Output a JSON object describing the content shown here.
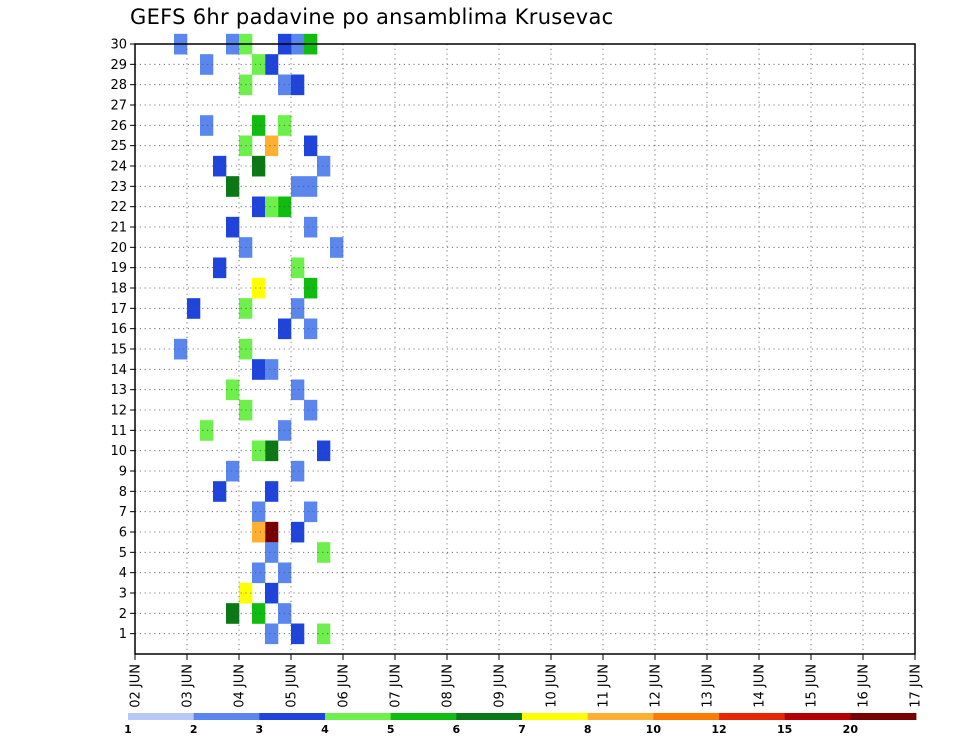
{
  "chart_data": {
    "type": "heatmap",
    "title": "GEFS 6hr padavine po ansamblima Krusevac",
    "xlabel": "",
    "ylabel": "",
    "x_tick_labels": [
      "02 JUN",
      "03 JUN",
      "04 JUN",
      "05 JUN",
      "06 JUN",
      "07 JUN",
      "08 JUN",
      "09 JUN",
      "10 JUN",
      "11 JUN",
      "12 JUN",
      "13 JUN",
      "14 JUN",
      "15 JUN",
      "16 JUN",
      "17 JUN"
    ],
    "y_tick_labels": [
      "1",
      "2",
      "3",
      "4",
      "5",
      "6",
      "7",
      "8",
      "9",
      "10",
      "11",
      "12",
      "13",
      "14",
      "15",
      "16",
      "17",
      "18",
      "19",
      "20",
      "21",
      "22",
      "23",
      "24",
      "25",
      "26",
      "27",
      "28",
      "29",
      "30"
    ],
    "ylim": [
      0,
      30
    ],
    "grid": true,
    "colorbar": {
      "labels": [
        "1",
        "2",
        "3",
        "4",
        "5",
        "6",
        "7",
        "8",
        "10",
        "12",
        "15",
        "20"
      ],
      "colors": [
        "#b8c8f6",
        "#5a86ee",
        "#1e44dc",
        "#6ef04c",
        "#0fbc0f",
        "#0a7814",
        "#ffff00",
        "#ffb030",
        "#ff7a00",
        "#e62800",
        "#b40000",
        "#780000"
      ]
    },
    "cells": [
      {
        "t": 7,
        "m": 30,
        "c": 1
      },
      {
        "t": 12,
        "m": 30,
        "c": 1
      },
      {
        "t": 11,
        "m": 30,
        "c": 2
      },
      {
        "t": 13,
        "m": 30,
        "c": 4
      },
      {
        "t": 8,
        "m": 30,
        "c": 3
      },
      {
        "t": 3,
        "m": 30,
        "c": 1
      },
      {
        "t": 5,
        "m": 29,
        "c": 1
      },
      {
        "t": 10,
        "m": 29,
        "c": 2
      },
      {
        "t": 9,
        "m": 29,
        "c": 3
      },
      {
        "t": 11,
        "m": 28,
        "c": 1
      },
      {
        "t": 12,
        "m": 28,
        "c": 2
      },
      {
        "t": 8,
        "m": 28,
        "c": 3
      },
      {
        "t": 5,
        "m": 26,
        "c": 1
      },
      {
        "t": 9,
        "m": 26,
        "c": 4
      },
      {
        "t": 11,
        "m": 26,
        "c": 3
      },
      {
        "t": 8,
        "m": 25,
        "c": 3
      },
      {
        "t": 13,
        "m": 25,
        "c": 2
      },
      {
        "t": 10,
        "m": 25,
        "c": 7
      },
      {
        "t": 6,
        "m": 24,
        "c": 2
      },
      {
        "t": 14,
        "m": 24,
        "c": 1
      },
      {
        "t": 9,
        "m": 24,
        "c": 5
      },
      {
        "t": 7,
        "m": 23,
        "c": 5
      },
      {
        "t": 12,
        "m": 23,
        "c": 1
      },
      {
        "t": 13,
        "m": 23,
        "c": 1
      },
      {
        "t": 9,
        "m": 22,
        "c": 2
      },
      {
        "t": 11,
        "m": 22,
        "c": 4
      },
      {
        "t": 10,
        "m": 22,
        "c": 3
      },
      {
        "t": 13,
        "m": 21,
        "c": 1
      },
      {
        "t": 7,
        "m": 21,
        "c": 2
      },
      {
        "t": 8,
        "m": 20,
        "c": 1
      },
      {
        "t": 15,
        "m": 20,
        "c": 1
      },
      {
        "t": 12,
        "m": 19,
        "c": 3
      },
      {
        "t": 6,
        "m": 19,
        "c": 2
      },
      {
        "t": 9,
        "m": 18,
        "c": 6
      },
      {
        "t": 13,
        "m": 18,
        "c": 4
      },
      {
        "t": 12,
        "m": 17,
        "c": 1
      },
      {
        "t": 4,
        "m": 17,
        "c": 2
      },
      {
        "t": 8,
        "m": 17,
        "c": 3
      },
      {
        "t": 13,
        "m": 16,
        "c": 1
      },
      {
        "t": 11,
        "m": 16,
        "c": 2
      },
      {
        "t": 8,
        "m": 15,
        "c": 3
      },
      {
        "t": 3,
        "m": 15,
        "c": 1
      },
      {
        "t": 9,
        "m": 14,
        "c": 2
      },
      {
        "t": 10,
        "m": 14,
        "c": 1
      },
      {
        "t": 7,
        "m": 13,
        "c": 3
      },
      {
        "t": 12,
        "m": 13,
        "c": 1
      },
      {
        "t": 8,
        "m": 12,
        "c": 3
      },
      {
        "t": 13,
        "m": 12,
        "c": 1
      },
      {
        "t": 11,
        "m": 11,
        "c": 1
      },
      {
        "t": 5,
        "m": 11,
        "c": 3
      },
      {
        "t": 10,
        "m": 10,
        "c": 5
      },
      {
        "t": 9,
        "m": 10,
        "c": 3
      },
      {
        "t": 14,
        "m": 10,
        "c": 2
      },
      {
        "t": 7,
        "m": 9,
        "c": 1
      },
      {
        "t": 12,
        "m": 9,
        "c": 1
      },
      {
        "t": 10,
        "m": 8,
        "c": 2
      },
      {
        "t": 6,
        "m": 8,
        "c": 2
      },
      {
        "t": 9,
        "m": 7,
        "c": 1
      },
      {
        "t": 13,
        "m": 7,
        "c": 1
      },
      {
        "t": 10,
        "m": 6,
        "c": 11
      },
      {
        "t": 9,
        "m": 6,
        "c": 7
      },
      {
        "t": 12,
        "m": 6,
        "c": 2
      },
      {
        "t": 14,
        "m": 5,
        "c": 3
      },
      {
        "t": 10,
        "m": 5,
        "c": 1
      },
      {
        "t": 9,
        "m": 4,
        "c": 1
      },
      {
        "t": 11,
        "m": 4,
        "c": 1
      },
      {
        "t": 8,
        "m": 3,
        "c": 6
      },
      {
        "t": 10,
        "m": 3,
        "c": 2
      },
      {
        "t": 7,
        "m": 2,
        "c": 5
      },
      {
        "t": 9,
        "m": 2,
        "c": 4
      },
      {
        "t": 11,
        "m": 2,
        "c": 1
      },
      {
        "t": 12,
        "m": 1,
        "c": 2
      },
      {
        "t": 14,
        "m": 1,
        "c": 3
      },
      {
        "t": 10,
        "m": 1,
        "c": 1
      }
    ]
  }
}
